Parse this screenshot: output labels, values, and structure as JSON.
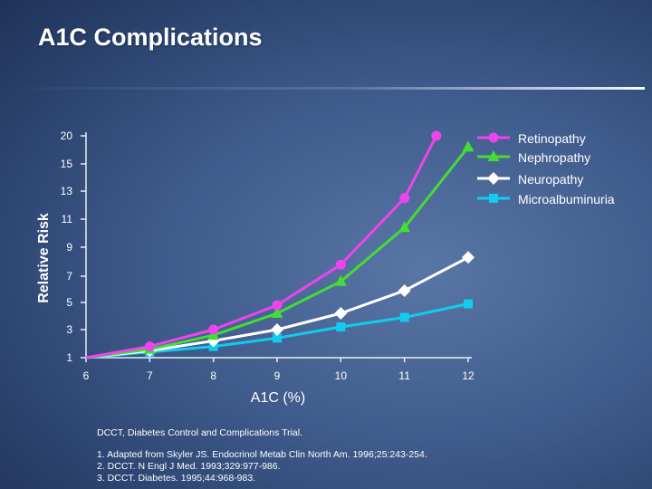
{
  "slide": {
    "title": "A1C Complications",
    "footnote_definition": "DCCT, Diabetes Control and Complications Trial.",
    "references": [
      "1.  Adapted from Skyler JS. Endocrinol Metab Clin North Am. 1996;25:243-254.",
      "2.  DCCT. N Engl J Med. 1993;329:977-986.",
      "3.  DCCT. Diabetes. 1995;44:968-983."
    ]
  },
  "chart_data": {
    "type": "line",
    "title": "",
    "xlabel": "A1C (%)",
    "ylabel": "Relative Risk",
    "x_ticks": [
      "6",
      "7",
      "8",
      "9",
      "10",
      "11",
      "12"
    ],
    "y_ticks": [
      "1",
      "3",
      "5",
      "7",
      "9",
      "11",
      "13",
      "15",
      "20"
    ],
    "x_range": [
      6,
      12
    ],
    "grid": false,
    "legend_position": "top-right",
    "series": [
      {
        "name": "Retinopathy",
        "color": "#ee44ee",
        "marker": "circle",
        "x": [
          6,
          7,
          8,
          9,
          10,
          11,
          11.5
        ],
        "y": [
          1,
          1.8,
          3,
          4.8,
          7.8,
          12.5,
          20
        ]
      },
      {
        "name": "Nephropathy",
        "color": "#44dd33",
        "marker": "triangle",
        "x": [
          6,
          7,
          8,
          9,
          10,
          11,
          12
        ],
        "y": [
          1,
          1.6,
          2.6,
          4.2,
          6.6,
          10.4,
          18
        ]
      },
      {
        "name": "Neuropathy",
        "color": "#ffffff",
        "marker": "diamond",
        "x": [
          6,
          7,
          8,
          9,
          10,
          11,
          12
        ],
        "y": [
          1,
          1.5,
          2.2,
          3,
          4.2,
          5.9,
          8.3
        ]
      },
      {
        "name": "Microalbuminuria",
        "color": "#11ccee",
        "marker": "square",
        "x": [
          6,
          7,
          8,
          9,
          10,
          11,
          12
        ],
        "y": [
          1,
          1.4,
          1.8,
          2.4,
          3.2,
          3.9,
          4.9
        ]
      }
    ]
  }
}
